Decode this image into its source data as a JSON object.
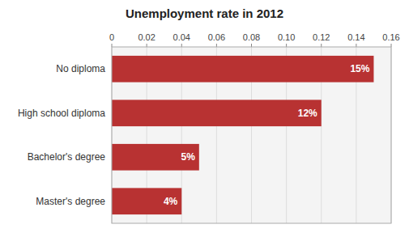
{
  "chart_data": {
    "type": "bar",
    "orientation": "horizontal",
    "title": "Unemployment rate in 2012",
    "categories": [
      "Master's degree",
      "Bachelor's degree",
      "High school diploma",
      "No diploma"
    ],
    "values": [
      0.04,
      0.05,
      0.12,
      0.15
    ],
    "value_labels": [
      "4%",
      "5%",
      "12%",
      "15%"
    ],
    "data_labels": true,
    "color": "#b83232",
    "xlim": [
      0,
      0.16
    ],
    "xticks": [
      0,
      0.02,
      0.04,
      0.06,
      0.08,
      {
        "value": 0.1,
        "label": "0.10"
      },
      0.12,
      0.14,
      0.16
    ],
    "grid": true
  }
}
